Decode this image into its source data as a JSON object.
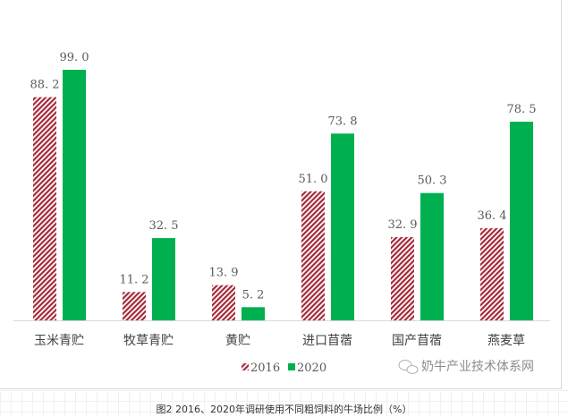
{
  "chart_data": {
    "type": "bar",
    "title": "",
    "categories": [
      "玉米青贮",
      "牧草青贮",
      "黄贮",
      "进口苜蓿",
      "国产苜蓿",
      "燕麦草"
    ],
    "series": [
      {
        "name": "2016",
        "values": [
          88.2,
          11.2,
          13.9,
          51.0,
          32.9,
          36.4
        ],
        "color": "#a52a3a",
        "pattern": "hatched"
      },
      {
        "name": "2020",
        "values": [
          99.0,
          32.5,
          5.2,
          73.8,
          50.3,
          78.5
        ],
        "color": "#00b050",
        "pattern": "solid"
      }
    ],
    "ylim": [
      0,
      100
    ],
    "grid": false,
    "legend": "bottom-left",
    "xlabel": "",
    "ylabel": ""
  },
  "watermark": "奶牛产业技术体系网",
  "caption": "图2  2016、2020年调研使用不同粗饲料的牛场比例（%）"
}
